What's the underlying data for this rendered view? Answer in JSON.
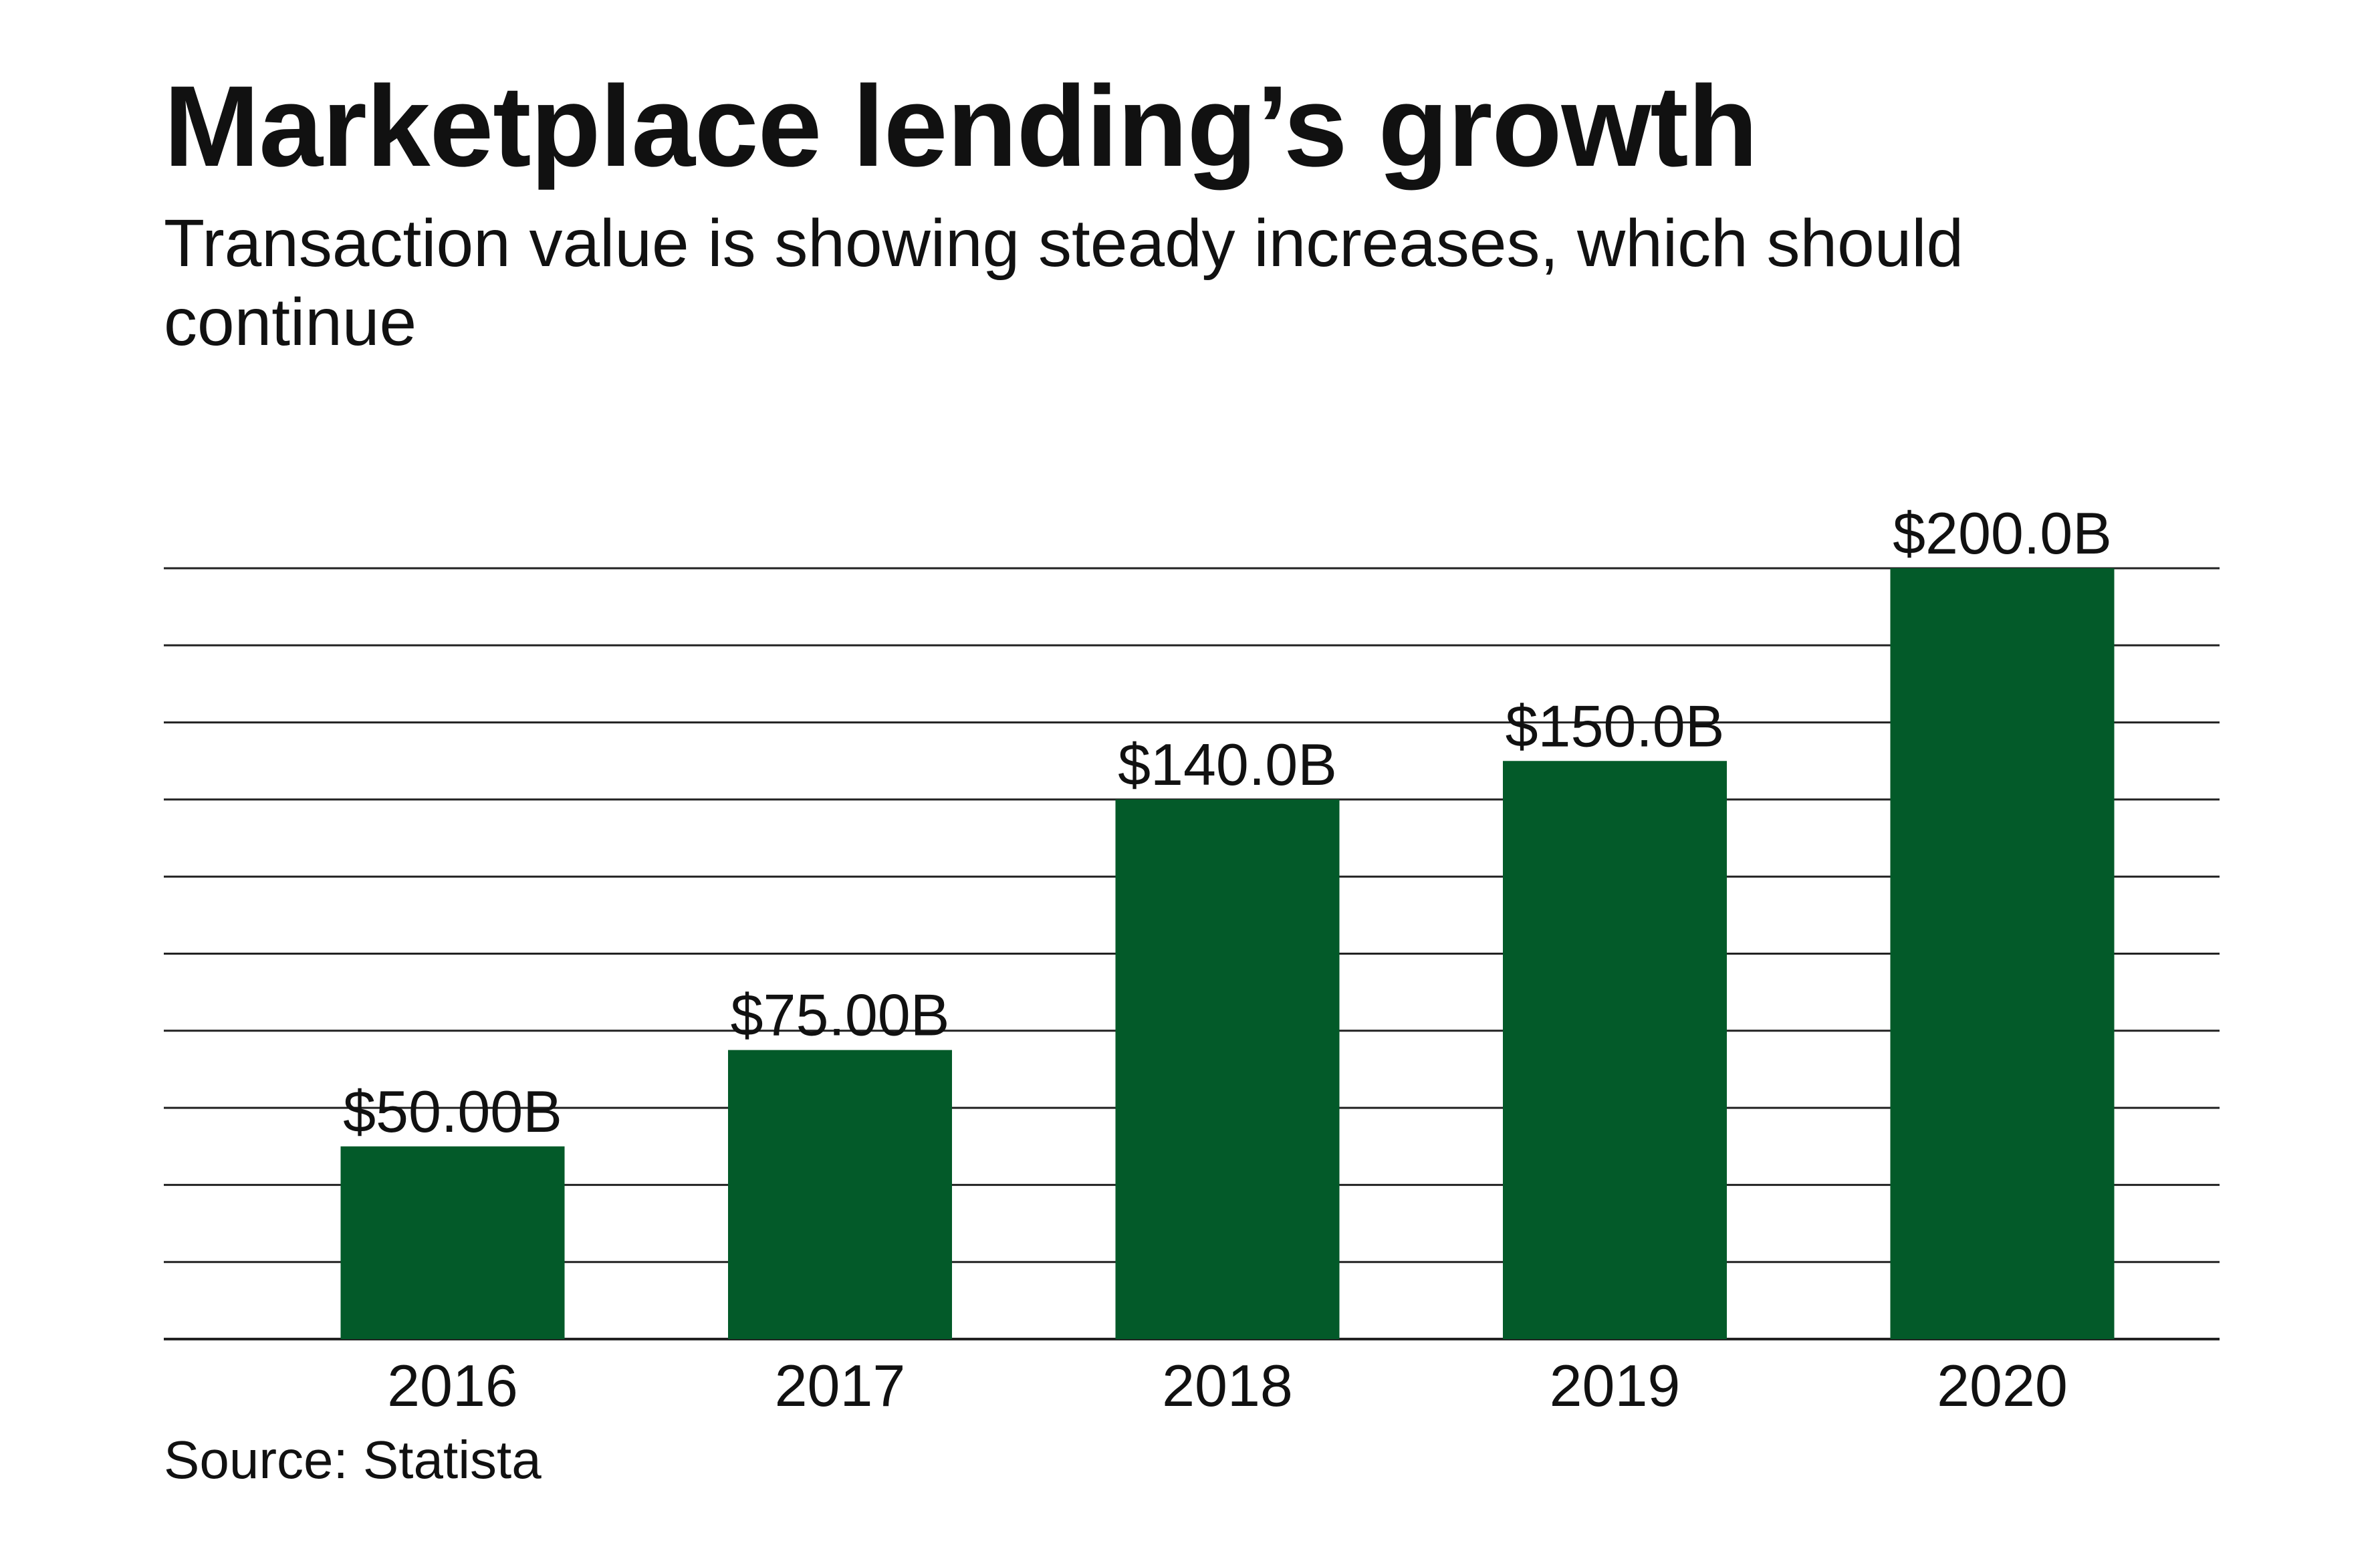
{
  "header": {
    "title": "Marketplace lending’s growth",
    "subtitle": "Transaction value is showing steady increases, which should continue"
  },
  "footer": {
    "source": "Source: Statista"
  },
  "colors": {
    "bar": "#035a29",
    "grid": "#222222"
  },
  "chart_data": {
    "type": "bar",
    "categories": [
      "2016",
      "2017",
      "2018",
      "2019",
      "2020"
    ],
    "values": [
      50,
      75,
      140,
      150,
      200
    ],
    "data_labels": [
      "$50.00B",
      "$75.00B",
      "$140.0B",
      "$150.0B",
      "$200.0B"
    ],
    "xlabel": "",
    "ylabel": "",
    "ylim": [
      0,
      200
    ],
    "grid": true,
    "grid_step": 20,
    "legend": "none"
  }
}
